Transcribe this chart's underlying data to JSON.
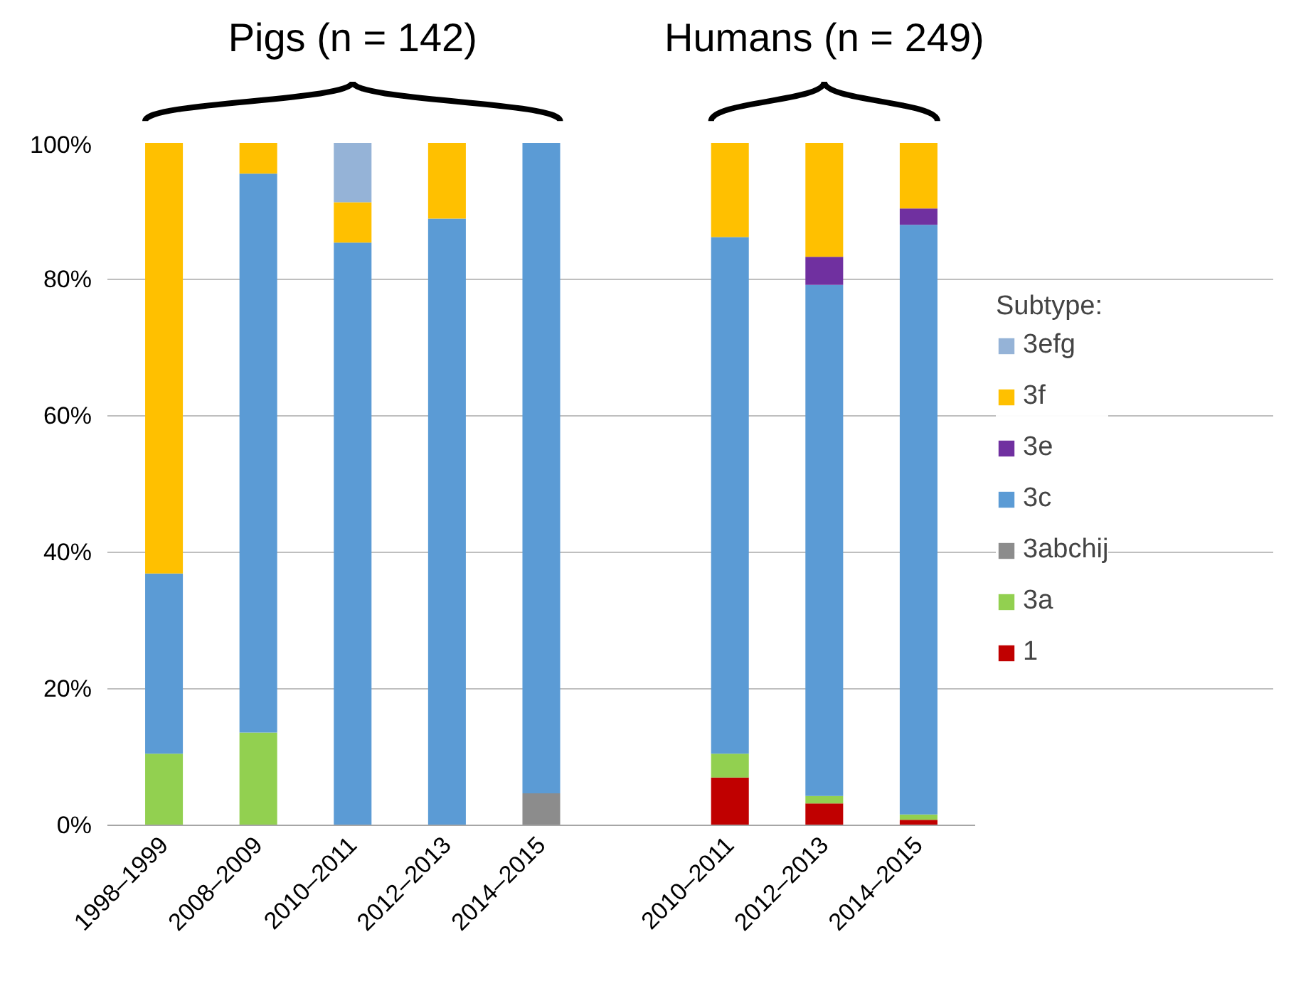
{
  "chart_data": {
    "type": "bar",
    "stacked": true,
    "categories": [
      "1998–1999",
      "2008–2009",
      "2010–2011",
      "2012–2013",
      "2014–2015",
      null,
      "2010–2011",
      "2012–2013",
      "2014–2015"
    ],
    "series": [
      {
        "name": "1",
        "color": "#c00000",
        "values": [
          null,
          null,
          null,
          null,
          null,
          null,
          7.0,
          3.2,
          0.8
        ]
      },
      {
        "name": "3a",
        "color": "#92d050",
        "values": [
          10.5,
          13.6,
          null,
          null,
          null,
          null,
          3.5,
          1.1,
          0.8
        ]
      },
      {
        "name": "3abchij",
        "color": "#8c8c8c",
        "values": [
          null,
          null,
          null,
          null,
          4.7,
          null,
          null,
          null,
          null
        ]
      },
      {
        "name": "3c",
        "color": "#5b9bd5",
        "values": [
          26.4,
          81.9,
          85.4,
          88.9,
          95.3,
          null,
          75.7,
          74.9,
          86.4
        ]
      },
      {
        "name": "3e",
        "color": "#7030a0",
        "values": [
          null,
          null,
          null,
          null,
          null,
          null,
          null,
          4.1,
          2.4
        ]
      },
      {
        "name": "3f",
        "color": "#ffc000",
        "values": [
          63.1,
          4.5,
          5.9,
          11.1,
          null,
          null,
          13.8,
          16.7,
          9.6
        ]
      },
      {
        "name": "3efg",
        "color": "#95b3d7",
        "values": [
          null,
          null,
          8.7,
          null,
          null,
          null,
          null,
          null,
          null
        ]
      }
    ],
    "ylim": [
      0,
      100
    ],
    "yticks": [
      {
        "value": 0,
        "label": "0%"
      },
      {
        "value": 20,
        "label": "20%"
      },
      {
        "value": 40,
        "label": "40%"
      },
      {
        "value": 60,
        "label": "60%"
      },
      {
        "value": 80,
        "label": "80%"
      },
      {
        "value": 100,
        "label": "100%"
      }
    ],
    "grid": "y",
    "legend": "right",
    "legend_title": "Subtype:",
    "annotations": [
      "Pigs (n = 142)",
      "Humans (n = 249)"
    ]
  }
}
